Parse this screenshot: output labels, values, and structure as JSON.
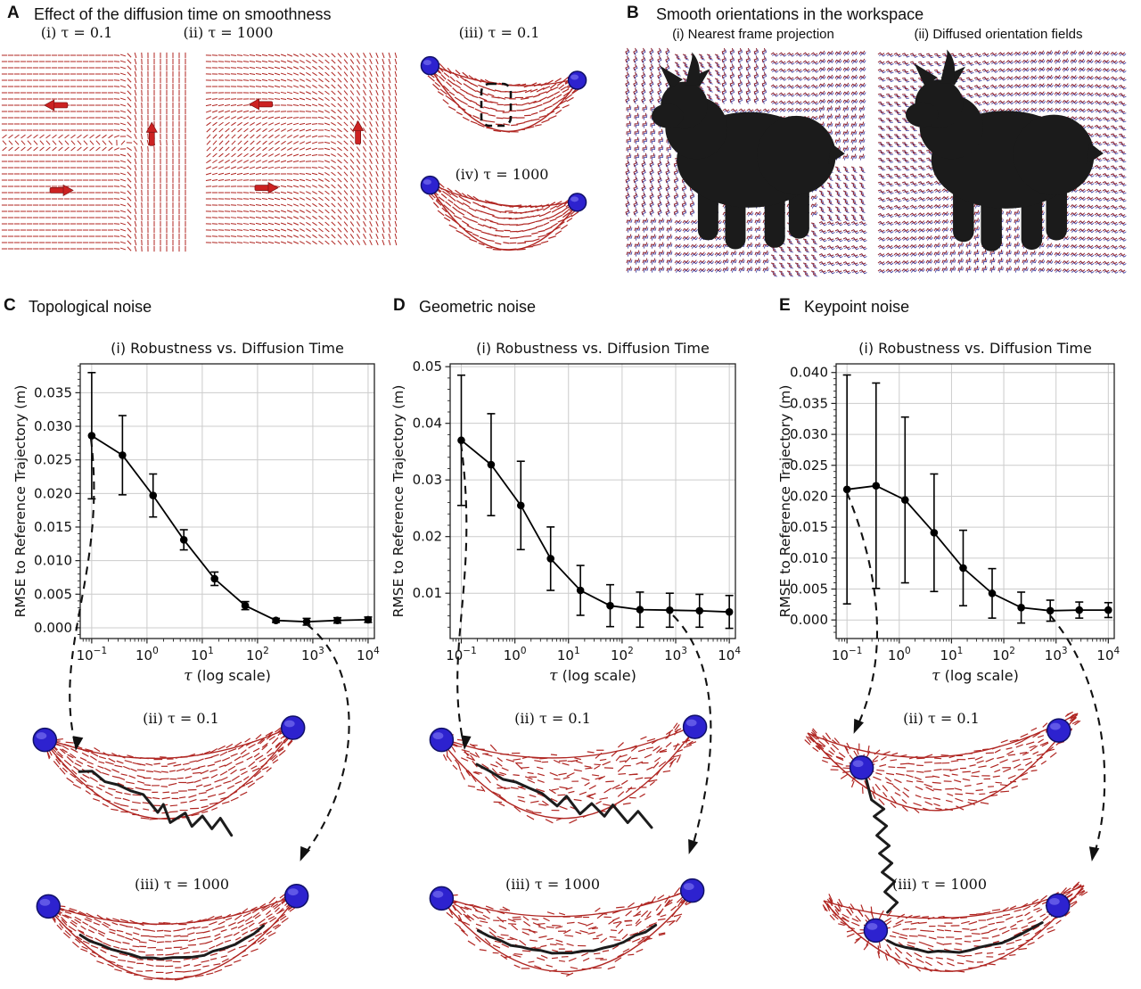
{
  "figure": {
    "panels": {
      "a": {
        "tag": "A",
        "title": "Effect of the diffusion time on smoothness",
        "subs": [
          "(i) τ = 0.1",
          "(ii) τ = 1000",
          "(iii) τ = 0.1",
          "(iv) τ = 1000"
        ]
      },
      "b": {
        "tag": "B",
        "title": "Smooth orientations in the workspace",
        "subs": [
          "(i) Nearest frame projection",
          "(ii) Diffused orientation fields"
        ]
      },
      "c": {
        "tag": "C",
        "title": "Topological noise",
        "subs": [
          "(ii) τ = 0.1",
          "(iii) τ = 1000"
        ]
      },
      "d": {
        "tag": "D",
        "title": "Geometric noise",
        "subs": [
          "(ii) τ = 0.1",
          "(iii) τ = 1000"
        ]
      },
      "e": {
        "tag": "E",
        "title": "Keypoint noise",
        "subs": [
          "(ii) τ = 0.1",
          "(iii) τ = 1000"
        ]
      }
    }
  },
  "colors": {
    "vector_red": "#b02622",
    "field_red_dark": "#8c2230",
    "frame_blue": "#3a3a9e",
    "sphere_blue": "#2d22cf",
    "sphere_edge": "#101068",
    "sphere_highlight": "#6a60ea",
    "trajectory_black": "#1c1c1c",
    "grid_gray": "#cccccc",
    "axis_black": "#222222",
    "animal_black": "#1b1b1b",
    "big_arrow_red": "#cc2222"
  },
  "chart_data": [
    {
      "panel": "C",
      "type": "line",
      "title": "(i) Robustness vs. Diffusion Time",
      "xlabel": "τ (log scale)",
      "ylabel": "RMSE to Reference Trajectory (m)",
      "xscale": "log",
      "grid": true,
      "legend": null,
      "x": [
        0.1,
        0.36,
        1.29,
        4.64,
        16.7,
        59.9,
        215.4,
        774.3,
        2782.6,
        10000
      ],
      "y": [
        0.0286,
        0.0257,
        0.0197,
        0.0131,
        0.0073,
        0.0033,
        0.0011,
        0.0009,
        0.0011,
        0.0012
      ],
      "yerr": [
        0.0094,
        0.0059,
        0.0032,
        0.0015,
        0.001,
        0.0006,
        0.0003,
        0.0005,
        0.0004,
        0.0004
      ],
      "xlim": [
        0.062,
        13000
      ],
      "ylim": [
        -0.0016,
        0.0393
      ],
      "xtick_values": [
        0.1,
        1,
        10,
        100,
        1000,
        10000
      ],
      "xtick_base": "10",
      "xtick_exponents": [
        "−1",
        "0",
        "1",
        "2",
        "3",
        "4"
      ],
      "ytick_values": [
        0.0,
        0.005,
        0.01,
        0.015,
        0.02,
        0.025,
        0.03,
        0.035
      ],
      "ytick_labels": [
        "0.000",
        "0.005",
        "0.010",
        "0.015",
        "0.020",
        "0.025",
        "0.030",
        "0.035"
      ]
    },
    {
      "panel": "D",
      "type": "line",
      "title": "(i) Robustness vs. Diffusion Time",
      "xlabel": "τ (log scale)",
      "ylabel": "RMSE to Reference Trajectory (m)",
      "xscale": "log",
      "grid": true,
      "legend": null,
      "x": [
        0.1,
        0.36,
        1.29,
        4.64,
        16.7,
        59.9,
        215.4,
        774.3,
        2782.6,
        10000
      ],
      "y": [
        0.037,
        0.0327,
        0.0255,
        0.0161,
        0.0105,
        0.0078,
        0.0071,
        0.007,
        0.0069,
        0.0067
      ],
      "yerr": [
        0.0115,
        0.009,
        0.0078,
        0.0056,
        0.0044,
        0.0037,
        0.0031,
        0.003,
        0.0029,
        0.0029
      ],
      "xlim": [
        0.062,
        13000
      ],
      "ylim": [
        0.002,
        0.0505
      ],
      "xtick_values": [
        0.1,
        1,
        10,
        100,
        1000,
        10000
      ],
      "xtick_base": "10",
      "xtick_exponents": [
        "−1",
        "0",
        "1",
        "2",
        "3",
        "4"
      ],
      "ytick_values": [
        0.01,
        0.02,
        0.03,
        0.04,
        0.05
      ],
      "ytick_labels": [
        "0.01",
        "0.02",
        "0.03",
        "0.04",
        "0.05"
      ]
    },
    {
      "panel": "E",
      "type": "line",
      "title": "(i) Robustness vs. Diffusion Time",
      "xlabel": "τ (log scale)",
      "ylabel": "RMSE to Reference Trajectory (m)",
      "xscale": "log",
      "grid": true,
      "legend": null,
      "x": [
        0.1,
        0.36,
        1.29,
        4.64,
        16.7,
        59.9,
        215.4,
        774.3,
        2782.6,
        10000
      ],
      "y": [
        0.0211,
        0.0217,
        0.0194,
        0.0141,
        0.0084,
        0.0043,
        0.002,
        0.0015,
        0.0016,
        0.0016
      ],
      "yerr": [
        0.0185,
        0.0166,
        0.0134,
        0.0095,
        0.0061,
        0.004,
        0.0025,
        0.0017,
        0.0013,
        0.0012
      ],
      "xlim": [
        0.062,
        13000
      ],
      "ylim": [
        -0.003,
        0.0414
      ],
      "xtick_values": [
        0.1,
        1,
        10,
        100,
        1000,
        10000
      ],
      "xtick_base": "10",
      "xtick_exponents": [
        "−1",
        "0",
        "1",
        "2",
        "3",
        "4"
      ],
      "ytick_values": [
        0.0,
        0.005,
        0.01,
        0.015,
        0.02,
        0.025,
        0.03,
        0.035,
        0.04
      ],
      "ytick_labels": [
        "0.000",
        "0.005",
        "0.010",
        "0.015",
        "0.020",
        "0.025",
        "0.030",
        "0.035",
        "0.040"
      ]
    }
  ]
}
